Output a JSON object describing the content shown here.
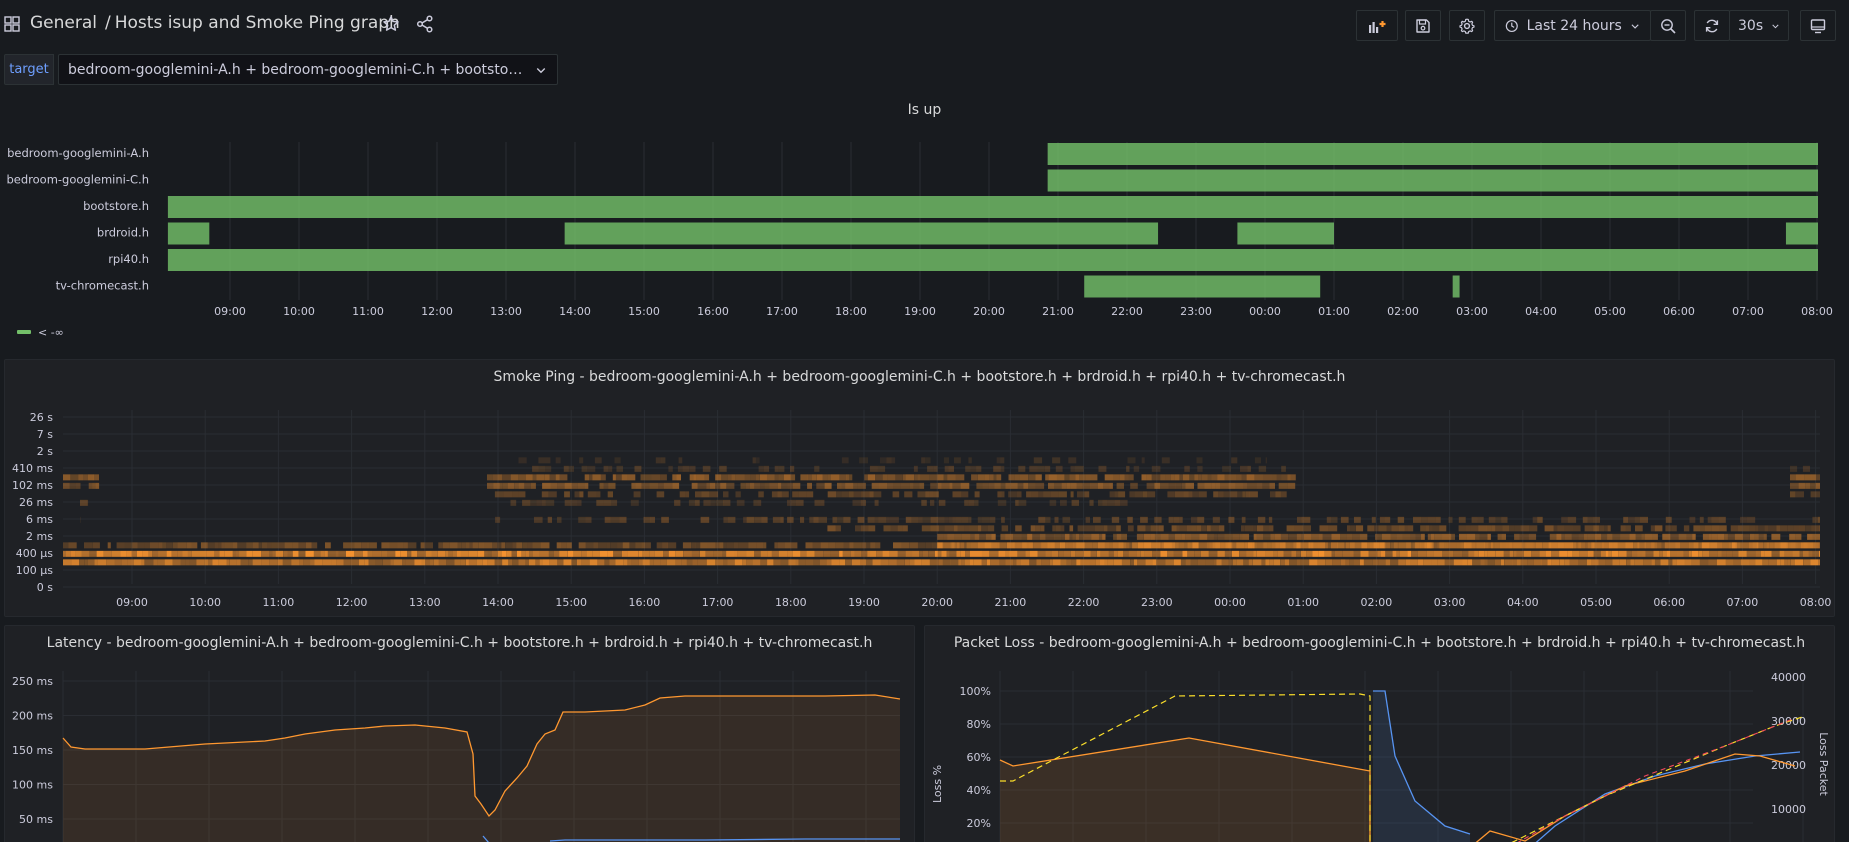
{
  "header": {
    "folder": "General",
    "separator": "/",
    "title": "Hosts isup and Smoke Ping graph",
    "time_range_label": "Last 24 hours",
    "refresh_interval": "30s"
  },
  "variables": {
    "target_label": "target",
    "target_value": "bedroom-googlemini-A.h + bedroom-googlemini-C.h + bootstore.h + brdroid.h + rpi40.h + tv-chromecast.h"
  },
  "colors": {
    "green": "#73bf69",
    "orange": "#ff9830",
    "blue": "#5794f2",
    "yellow": "#fade2a",
    "bg": "#181b1f",
    "panel": "#1f2125"
  },
  "time_axis": [
    "09:00",
    "10:00",
    "11:00",
    "12:00",
    "13:00",
    "14:00",
    "15:00",
    "16:00",
    "17:00",
    "18:00",
    "19:00",
    "20:00",
    "21:00",
    "22:00",
    "23:00",
    "00:00",
    "01:00",
    "02:00",
    "03:00",
    "04:00",
    "05:00",
    "06:00",
    "07:00",
    "08:00"
  ],
  "isup_panel": {
    "title": "Is up",
    "legend": "< -∞",
    "rows": [
      {
        "name": "bedroom-googlemini-A.h",
        "segments": [
          [
            11.85,
            24.0
          ]
        ]
      },
      {
        "name": "bedroom-googlemini-C.h",
        "segments": [
          [
            11.85,
            24.0
          ]
        ]
      },
      {
        "name": "bootstore.h",
        "segments": [
          [
            -0.9,
            24.0
          ]
        ]
      },
      {
        "name": "brdroid.h",
        "segments": [
          [
            -0.9,
            -0.3
          ],
          [
            4.85,
            13.45
          ],
          [
            14.6,
            16.0
          ],
          [
            22.55,
            24.0
          ]
        ]
      },
      {
        "name": "rpi40.h",
        "segments": [
          [
            -0.9,
            24.0
          ]
        ]
      },
      {
        "name": "tv-chromecast.h",
        "segments": [
          [
            12.38,
            15.8
          ],
          [
            17.72,
            17.82
          ]
        ]
      }
    ]
  },
  "smokeping_panel": {
    "title": "Smoke Ping - bedroom-googlemini-A.h + bedroom-googlemini-C.h + bootstore.h + brdroid.h + rpi40.h + tv-chromecast.h",
    "y_labels": [
      "26 s",
      "7 s",
      "2 s",
      "410 ms",
      "102 ms",
      "26 ms",
      "6 ms",
      "2 ms",
      "400 µs",
      "100 µs",
      "0 s"
    ]
  },
  "latency_panel": {
    "title": "Latency - bedroom-googlemini-A.h + bedroom-googlemini-C.h + bootstore.h + brdroid.h + rpi40.h + tv-chromecast.h",
    "y_labels": [
      "250 ms",
      "200 ms",
      "150 ms",
      "100 ms",
      "50 ms"
    ]
  },
  "packetloss_panel": {
    "title": "Packet Loss - bedroom-googlemini-A.h + bedroom-googlemini-C.h + bootstore.h + brdroid.h + rpi40.h + tv-chromecast.h",
    "y_left_labels": [
      "100%",
      "80%",
      "60%",
      "40%",
      "20%"
    ],
    "y_right_labels": [
      "40000",
      "30000",
      "20000",
      "10000"
    ],
    "y_left_title": "Loss %",
    "y_right_title": "Loss Packet"
  }
}
